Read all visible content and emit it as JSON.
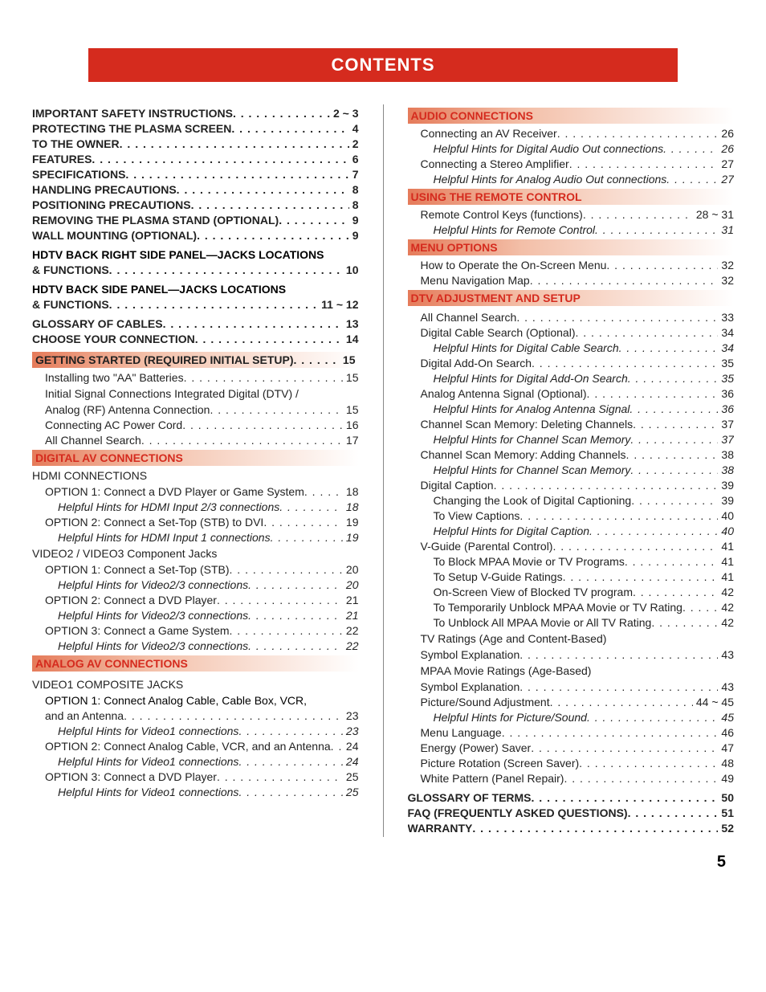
{
  "title": "CONTENTS",
  "page_number": "5",
  "colors": {
    "title_bg": "#d52b1e",
    "title_fg": "#ffffff",
    "section_text": "#d52b1e",
    "grad_start": "#e57b5a",
    "grad_mid": "#f3bfa8"
  },
  "left": {
    "top": [
      {
        "label": "IMPORTANT SAFETY INSTRUCTIONS",
        "pg": "2 ~ 3",
        "bold": true
      },
      {
        "label": "PROTECTING THE PLASMA SCREEN",
        "pg": "4",
        "bold": true
      },
      {
        "label": "TO THE OWNER",
        "pg": "2",
        "bold": true
      },
      {
        "label": "FEATURES",
        "pg": "6",
        "bold": true
      },
      {
        "label": "SPECIFICATIONS",
        "pg": "7",
        "bold": true
      },
      {
        "label": "HANDLING PRECAUTIONS",
        "pg": "8",
        "bold": true
      },
      {
        "label": "POSITIONING PRECAUTIONS",
        "pg": "8",
        "bold": true
      },
      {
        "label": "REMOVING THE PLASMA STAND (OPTIONAL)",
        "pg": "9",
        "bold": true
      },
      {
        "label": "WALL MOUNTING (OPTIONAL)",
        "pg": "9",
        "bold": true
      }
    ],
    "hdtv1_a": "HDTV BACK RIGHT SIDE PANEL—JACKS LOCATIONS",
    "hdtv1_b": "& FUNCTIONS",
    "hdtv1_pg": "10",
    "hdtv2_a": "HDTV BACK SIDE PANEL—JACKS LOCATIONS",
    "hdtv2_b": "& FUNCTIONS",
    "hdtv2_pg": "11 ~ 12",
    "post_hdtv": [
      {
        "label": "GLOSSARY OF CABLES",
        "pg": "13",
        "bold": true
      },
      {
        "label": "CHOOSE YOUR CONNECTION",
        "pg": "14",
        "bold": true
      }
    ],
    "sec1_label": "GETTING STARTED (REQUIRED INITIAL SETUP)",
    "sec1_pg": "15",
    "sec1_items": [
      {
        "label": "Installing two \"AA\" Batteries",
        "pg": "15",
        "ind": 1
      },
      {
        "label_no_pg": "Initial Signal Connections Integrated Digital (DTV) /",
        "ind": 1
      },
      {
        "label": "Analog (RF) Antenna Connection",
        "pg": "15",
        "ind": 1
      },
      {
        "label": "Connecting AC Power Cord",
        "pg": "16",
        "ind": 1
      },
      {
        "label": "All Channel Search",
        "pg": "17",
        "ind": 1
      }
    ],
    "sec2_label": "DIGITAL AV CONNECTIONS",
    "sec2_sub1": "HDMI CONNECTIONS",
    "sec2_items1": [
      {
        "label": "OPTION 1: Connect a DVD Player or Game System",
        "pg": "18",
        "ind": 1
      },
      {
        "label": "Helpful Hints for HDMI Input 2/3 connections",
        "pg": "18",
        "ind": 2,
        "italic": true
      },
      {
        "label": "OPTION 2: Connect a Set-Top (STB) to DVI",
        "pg": "19",
        "ind": 1
      },
      {
        "label": "Helpful Hints for HDMI Input 1 connections",
        "pg": "19",
        "ind": 2,
        "italic": true
      }
    ],
    "sec2_sub2": "VIDEO2 / VIDEO3 Component Jacks",
    "sec2_items2": [
      {
        "label": "OPTION 1: Connect a Set-Top (STB)",
        "pg": "20",
        "ind": 1
      },
      {
        "label": "Helpful Hints for Video2/3 connections",
        "pg": "20",
        "ind": 2,
        "italic": true
      },
      {
        "label": "OPTION 2: Connect a DVD Player",
        "pg": "21",
        "ind": 1
      },
      {
        "label": "Helpful Hints for Video2/3 connections",
        "pg": "21",
        "ind": 2,
        "italic": true
      },
      {
        "label": "OPTION 3: Connect a Game System",
        "pg": "22",
        "ind": 1
      },
      {
        "label": "Helpful Hints for Video2/3 connections",
        "pg": "22",
        "ind": 2,
        "italic": true
      }
    ],
    "sec3_label": "ANALOG AV CONNECTIONS",
    "sec3_sub1": "VIDEO1 COMPOSITE JACKS",
    "sec3_opt1a": "OPTION 1: Connect Analog Cable, Cable Box, VCR,",
    "sec3_opt1b": "and an Antenna",
    "sec3_opt1_pg": "23",
    "sec3_items": [
      {
        "label": "Helpful Hints for Video1 connections",
        "pg": "23",
        "ind": 2,
        "italic": true
      },
      {
        "label": "OPTION 2: Connect Analog Cable, VCR, and an Antenna",
        "pg": "24",
        "ind": 1
      },
      {
        "label": "Helpful Hints for Video1 connections",
        "pg": "24",
        "ind": 2,
        "italic": true
      },
      {
        "label": "OPTION 3: Connect a DVD Player",
        "pg": "25",
        "ind": 1
      },
      {
        "label": "Helpful Hints for Video1 connections",
        "pg": "25",
        "ind": 2,
        "italic": true
      }
    ]
  },
  "right": {
    "sec1_label": "AUDIO CONNECTIONS",
    "sec1_items": [
      {
        "label": "Connecting an AV Receiver",
        "pg": "26",
        "ind": 1
      },
      {
        "label": "Helpful Hints for Digital Audio Out connections",
        "pg": "26",
        "ind": 2,
        "italic": true
      },
      {
        "label": "Connecting a Stereo Amplifier",
        "pg": "27",
        "ind": 1
      },
      {
        "label": "Helpful Hints for Analog Audio Out connections",
        "pg": "27",
        "ind": 2,
        "italic": true
      }
    ],
    "sec2_label": "USING THE REMOTE CONTROL",
    "sec2_items": [
      {
        "label": "Remote Control Keys (functions)",
        "pg": "28 ~ 31",
        "ind": 1
      },
      {
        "label": "Helpful Hints for Remote Control",
        "pg": "31",
        "ind": 2,
        "italic": true
      }
    ],
    "sec3_label": "MENU OPTIONS",
    "sec3_items": [
      {
        "label": "How to Operate the On-Screen Menu",
        "pg": "32",
        "ind": 1
      },
      {
        "label": "Menu Navigation Map",
        "pg": "32",
        "ind": 1
      }
    ],
    "sec4_label": "DTV ADJUSTMENT AND SETUP",
    "sec4_items": [
      {
        "label": "All Channel Search",
        "pg": "33",
        "ind": 1
      },
      {
        "label": "Digital Cable Search (Optional)",
        "pg": "34",
        "ind": 1
      },
      {
        "label": "Helpful Hints for Digital Cable Search",
        "pg": "34",
        "ind": 2,
        "italic": true
      },
      {
        "label": "Digital Add-On Search",
        "pg": "35",
        "ind": 1
      },
      {
        "label": "Helpful Hints for Digital Add-On Search",
        "pg": "35",
        "ind": 2,
        "italic": true
      },
      {
        "label": "Analog Antenna Signal (Optional)",
        "pg": "36",
        "ind": 1
      },
      {
        "label": "Helpful Hints for Analog Antenna Signal",
        "pg": "36",
        "ind": 2,
        "italic": true
      },
      {
        "label": "Channel Scan Memory: Deleting Channels",
        "pg": "37",
        "ind": 1
      },
      {
        "label": "Helpful Hints for Channel Scan Memory",
        "pg": "37",
        "ind": 2,
        "italic": true
      },
      {
        "label": "Channel Scan Memory: Adding Channels",
        "pg": "38",
        "ind": 1
      },
      {
        "label": "Helpful Hints for Channel Scan Memory",
        "pg": "38",
        "ind": 2,
        "italic": true
      },
      {
        "label": "Digital Caption",
        "pg": "39",
        "ind": 1
      },
      {
        "label": "Changing the Look of Digital Captioning",
        "pg": "39",
        "ind": 2
      },
      {
        "label": "To View Captions",
        "pg": "40",
        "ind": 2
      },
      {
        "label": "Helpful Hints for Digital Caption",
        "pg": "40",
        "ind": 2,
        "italic": true
      },
      {
        "label": "V-Guide (Parental Control)",
        "pg": "41",
        "ind": 1
      },
      {
        "label": "To Block MPAA Movie or TV Programs",
        "pg": "41",
        "ind": 2
      },
      {
        "label": "To Setup V-Guide Ratings",
        "pg": "41",
        "ind": 2
      },
      {
        "label": "On-Screen View of Blocked TV program",
        "pg": "42",
        "ind": 2
      },
      {
        "label": "To Temporarily Unblock MPAA Movie or TV Rating",
        "pg": "42",
        "ind": 2
      },
      {
        "label": "To Unblock All MPAA Movie or All TV Rating",
        "pg": "42",
        "ind": 2
      },
      {
        "label_no_pg": "TV Ratings (Age and Content-Based)",
        "ind": 1
      },
      {
        "label": "Symbol Explanation",
        "pg": "43",
        "ind": 1
      },
      {
        "label_no_pg": "MPAA Movie Ratings (Age-Based)",
        "ind": 1
      },
      {
        "label": "Symbol Explanation",
        "pg": "43",
        "ind": 1
      },
      {
        "label": "Picture/Sound Adjustment",
        "pg": "44 ~ 45",
        "ind": 1
      },
      {
        "label": "Helpful Hints for Picture/Sound",
        "pg": "45",
        "ind": 2,
        "italic": true
      },
      {
        "label": "Menu Language",
        "pg": "46",
        "ind": 1
      },
      {
        "label": "Energy (Power) Saver",
        "pg": "47",
        "ind": 1
      },
      {
        "label": "Picture Rotation (Screen Saver)",
        "pg": "48",
        "ind": 1
      },
      {
        "label": "White Pattern (Panel Repair)",
        "pg": "49",
        "ind": 1
      }
    ],
    "bottom": [
      {
        "label": "GLOSSARY OF TERMS",
        "pg": "50",
        "bold": true
      },
      {
        "label": "FAQ (FREQUENTLY ASKED QUESTIONS)",
        "pg": "51",
        "bold": true
      },
      {
        "label": "WARRANTY",
        "pg": "52",
        "bold": true
      }
    ]
  }
}
